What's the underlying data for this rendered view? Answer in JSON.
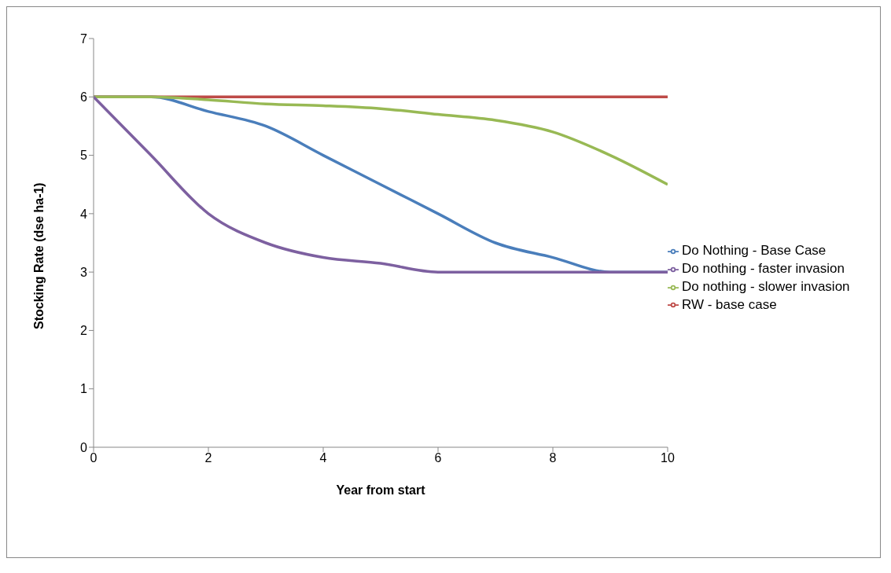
{
  "chart_data": {
    "type": "line",
    "xlabel": "Year from start",
    "ylabel": "Stocking Rate (dse ha-1)",
    "x": [
      0,
      1,
      2,
      3,
      4,
      5,
      6,
      7,
      8,
      9,
      10
    ],
    "xlim": [
      0,
      10
    ],
    "xticks": [
      0,
      2,
      4,
      6,
      8,
      10
    ],
    "ylim": [
      0,
      7
    ],
    "yticks": [
      0,
      1,
      2,
      3,
      4,
      5,
      6,
      7
    ],
    "grid": false,
    "legend": "right",
    "marker": "none",
    "line_style": "solid",
    "series": [
      {
        "name": "Do Nothing - Base Case",
        "color": "#4a7ebb",
        "values": [
          6,
          6,
          5.75,
          5.5,
          5,
          4.5,
          4,
          3.5,
          3.25,
          3,
          3
        ]
      },
      {
        "name": "RW - base case",
        "color": "#be4b48",
        "values": [
          6,
          6,
          6,
          6,
          6,
          6,
          6,
          6,
          6,
          6,
          6
        ]
      },
      {
        "name": "Do nothing - slower invasion",
        "color": "#98b954",
        "values": [
          6,
          6,
          5.95,
          5.88,
          5.85,
          5.8,
          5.7,
          5.6,
          5.4,
          5,
          4.5
        ]
      },
      {
        "name": "Do nothing - faster invasion",
        "color": "#7d60a0",
        "values": [
          6,
          5,
          4,
          3.5,
          3.25,
          3.15,
          3,
          3,
          3,
          3,
          3
        ]
      }
    ]
  }
}
